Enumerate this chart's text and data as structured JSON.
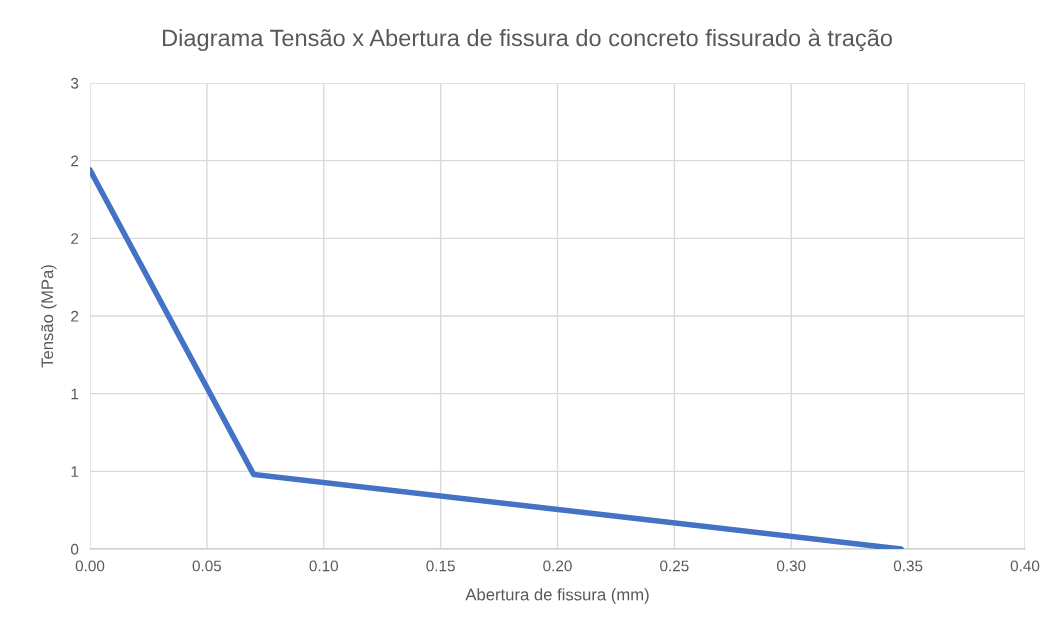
{
  "chart_data": {
    "type": "line",
    "title": "Diagrama Tensão x Abertura de fissura do concreto fissurado à tração",
    "xlabel": "Abertura de fissura (mm)",
    "ylabel": "Tensão (MPa)",
    "x": [
      0,
      0.07,
      0.347
    ],
    "series": [
      {
        "color": "#4472c4",
        "values": [
          2.44,
          0.48,
          0
        ]
      }
    ],
    "xlim": [
      0,
      0.4
    ],
    "xticks": [
      {
        "value": 0,
        "label": "0.00"
      },
      {
        "value": 0.05,
        "label": "0.05"
      },
      {
        "value": 0.1,
        "label": "0.10"
      },
      {
        "value": 0.15,
        "label": "0.15"
      },
      {
        "value": 0.2,
        "label": "0.20"
      },
      {
        "value": 0.25,
        "label": "0.25"
      },
      {
        "value": 0.3,
        "label": "0.30"
      },
      {
        "value": 0.35,
        "label": "0.35"
      },
      {
        "value": 0.4,
        "label": "0.40"
      }
    ],
    "ylim": [
      0,
      3
    ],
    "yticks": [
      0,
      {
        "value": 0.5,
        "label": "1"
      },
      1,
      {
        "value": 1.5,
        "label": "2"
      },
      2,
      {
        "value": 2.5,
        "label": "2"
      },
      3
    ],
    "grid": true,
    "legend": false,
    "marker": "none",
    "line_style": "solid"
  }
}
